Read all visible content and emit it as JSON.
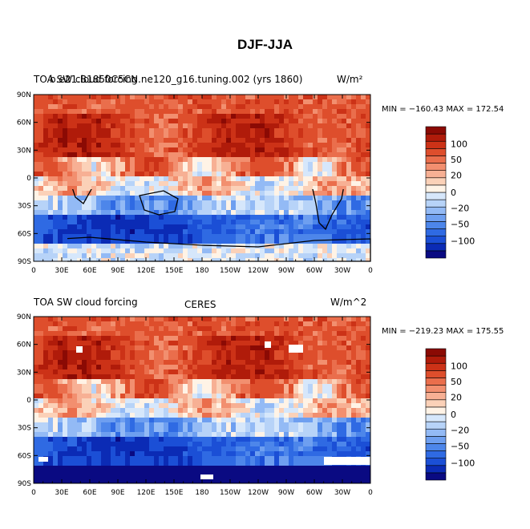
{
  "title": "DJF-JJA",
  "colors": {
    "levels": [
      "#0a0a82",
      "#0b2bb5",
      "#1b4fd6",
      "#2f6ae3",
      "#4d86ea",
      "#6e9ff0",
      "#93baf5",
      "#b7d3f8",
      "#d6e7fb",
      "#fff3e6",
      "#fbd1b8",
      "#f7b094",
      "#f28f6f",
      "#ea6e4c",
      "#de4e2c",
      "#cc3217",
      "#b01b0a",
      "#8b0a04"
    ],
    "coast": "#000000",
    "mask": "#ffffff"
  },
  "panels": [
    {
      "id": "model",
      "left_title": "TOA SW cloud forcing",
      "center_title": "b.e21.B1850C5CN.ne120_g16.tuning.002 (yrs 1860)",
      "units": "W/m²",
      "min_max": "MIN = −160.43 MAX = 172.54"
    },
    {
      "id": "obs",
      "left_title": "TOA SW cloud forcing",
      "center_title": "CERES",
      "units": "W/m^2",
      "min_max": "MIN = −219.23 MAX = 175.55"
    }
  ],
  "lat_labels": [
    "90N",
    "60N",
    "30N",
    "0",
    "30S",
    "60S",
    "90S"
  ],
  "lon_labels": [
    "0",
    "30E",
    "60E",
    "90E",
    "120E",
    "150E",
    "180",
    "150W",
    "120W",
    "90W",
    "60W",
    "30W",
    "0"
  ],
  "colorbar_labels": [
    "100",
    "50",
    "20",
    "0",
    "−20",
    "−50",
    "−100"
  ]
}
